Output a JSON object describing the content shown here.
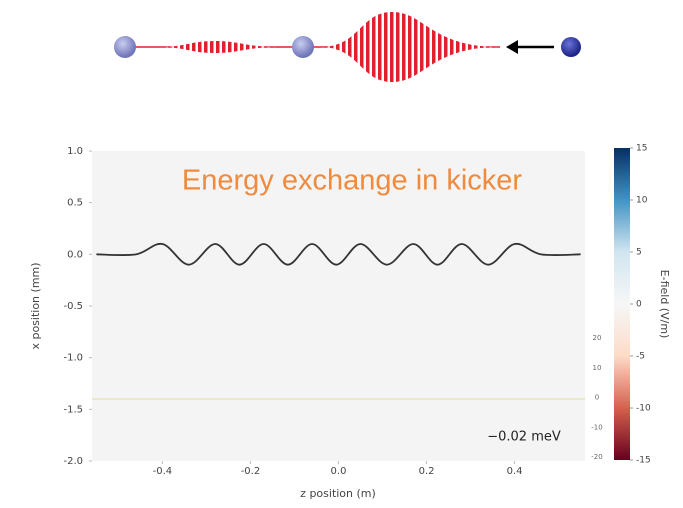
{
  "chart_data": {
    "type": "line",
    "annotation": "Energy exchange in kicker",
    "energy_label": "−0.02 meV",
    "xlabel": "z position (m)",
    "ylabel": "x position (mm)",
    "xlim": [
      -0.56,
      0.56
    ],
    "ylim": [
      -2.0,
      1.0
    ],
    "xticks": [
      -0.4,
      -0.2,
      {
        "value": 0,
        "label": "0.0"
      },
      0.2,
      0.4
    ],
    "yticks": [
      {
        "value": 1,
        "label": "1.0"
      },
      0.5,
      {
        "value": 0,
        "label": "0.0"
      },
      -0.5,
      {
        "value": -1,
        "label": "-1.0"
      },
      -1.5,
      {
        "value": -2,
        "label": "-2.0"
      }
    ],
    "y2lim": [
      -20,
      20
    ],
    "y2ticks": [
      20,
      10,
      0,
      -10,
      -20
    ],
    "series": [
      {
        "color": "#333333",
        "x": [
          -0.55,
          -0.46,
          -0.4,
          -0.34,
          -0.28,
          -0.225,
          -0.17,
          -0.115,
          -0.06,
          -0.005,
          0.05,
          0.11,
          0.17,
          0.225,
          0.28,
          0.34,
          0.4,
          0.46,
          0.55
        ],
        "values": [
          0,
          0,
          0.1,
          -0.1,
          0.1,
          -0.1,
          0.1,
          -0.1,
          0.1,
          -0.1,
          0.1,
          -0.1,
          0.1,
          -0.1,
          0.1,
          -0.1,
          0.1,
          0,
          0
        ]
      },
      {
        "color": "#e8e0b0",
        "x": [
          -0.56,
          0.56
        ],
        "values": [
          -1.4,
          -1.4
        ]
      }
    ],
    "colorbar": {
      "label": "E-field (V/m)",
      "lim": [
        -15,
        15
      ],
      "ticks": [
        15,
        10,
        5,
        0,
        -5,
        -10,
        -15
      ],
      "colors": [
        "#67001f",
        "#d6604d",
        "#fddbc7",
        "#f7f7f7",
        "#d1e5f0",
        "#4393c3",
        "#053061"
      ]
    }
  }
}
